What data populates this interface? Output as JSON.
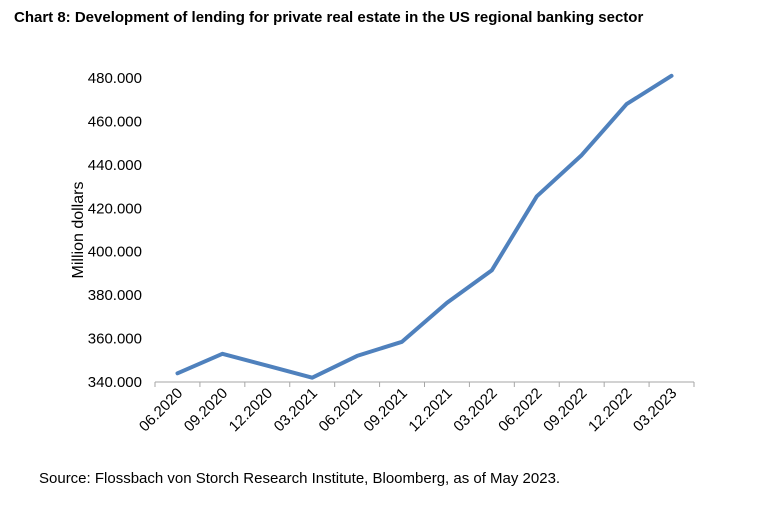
{
  "title": "Chart 8: Development of lending for private real estate in the US regional banking sector",
  "source": "Source: Flossbach von Storch Research Institute, Bloomberg, as of May 2023.",
  "chart_data": {
    "type": "line",
    "categories": [
      "06.2020",
      "09.2020",
      "12.2020",
      "03.2021",
      "06.2021",
      "09.2021",
      "12.2021",
      "03.2022",
      "06.2022",
      "09.2022",
      "12.2022",
      "03.2023"
    ],
    "series": [
      {
        "values": [
          344000,
          353000,
          347500,
          342000,
          352000,
          358500,
          376500,
          391500,
          425500,
          444500,
          468000,
          481000
        ],
        "color": "#4F81BD"
      }
    ],
    "ylabel": "Million dollars",
    "ylim": [
      340000,
      480000
    ],
    "yticks": [
      340000,
      360000,
      380000,
      400000,
      420000,
      440000,
      460000,
      480000
    ],
    "ytick_labels": [
      "340.000",
      "360.000",
      "380.000",
      "400.000",
      "420.000",
      "440.000",
      "460.000",
      "480.000"
    ],
    "grid": false,
    "legend": "none"
  }
}
